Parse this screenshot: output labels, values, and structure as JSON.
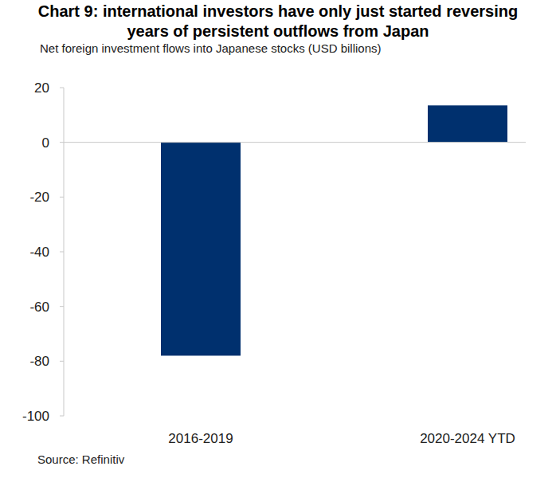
{
  "chart_data": {
    "type": "bar",
    "title": "Chart 9: international investors have only just started reversing years of persistent outflows from Japan",
    "subtitle": "Net foreign investment flows into Japanese stocks (USD billions)",
    "source": "Source: Refinitiv",
    "categories": [
      "2016-2019",
      "2020-2024 YTD"
    ],
    "values": [
      -78,
      13.5
    ],
    "color": "#00306e",
    "ylim": [
      -100,
      20
    ],
    "yticks": [
      -100,
      -80,
      -60,
      -40,
      -20,
      0,
      20
    ],
    "grid": false
  }
}
